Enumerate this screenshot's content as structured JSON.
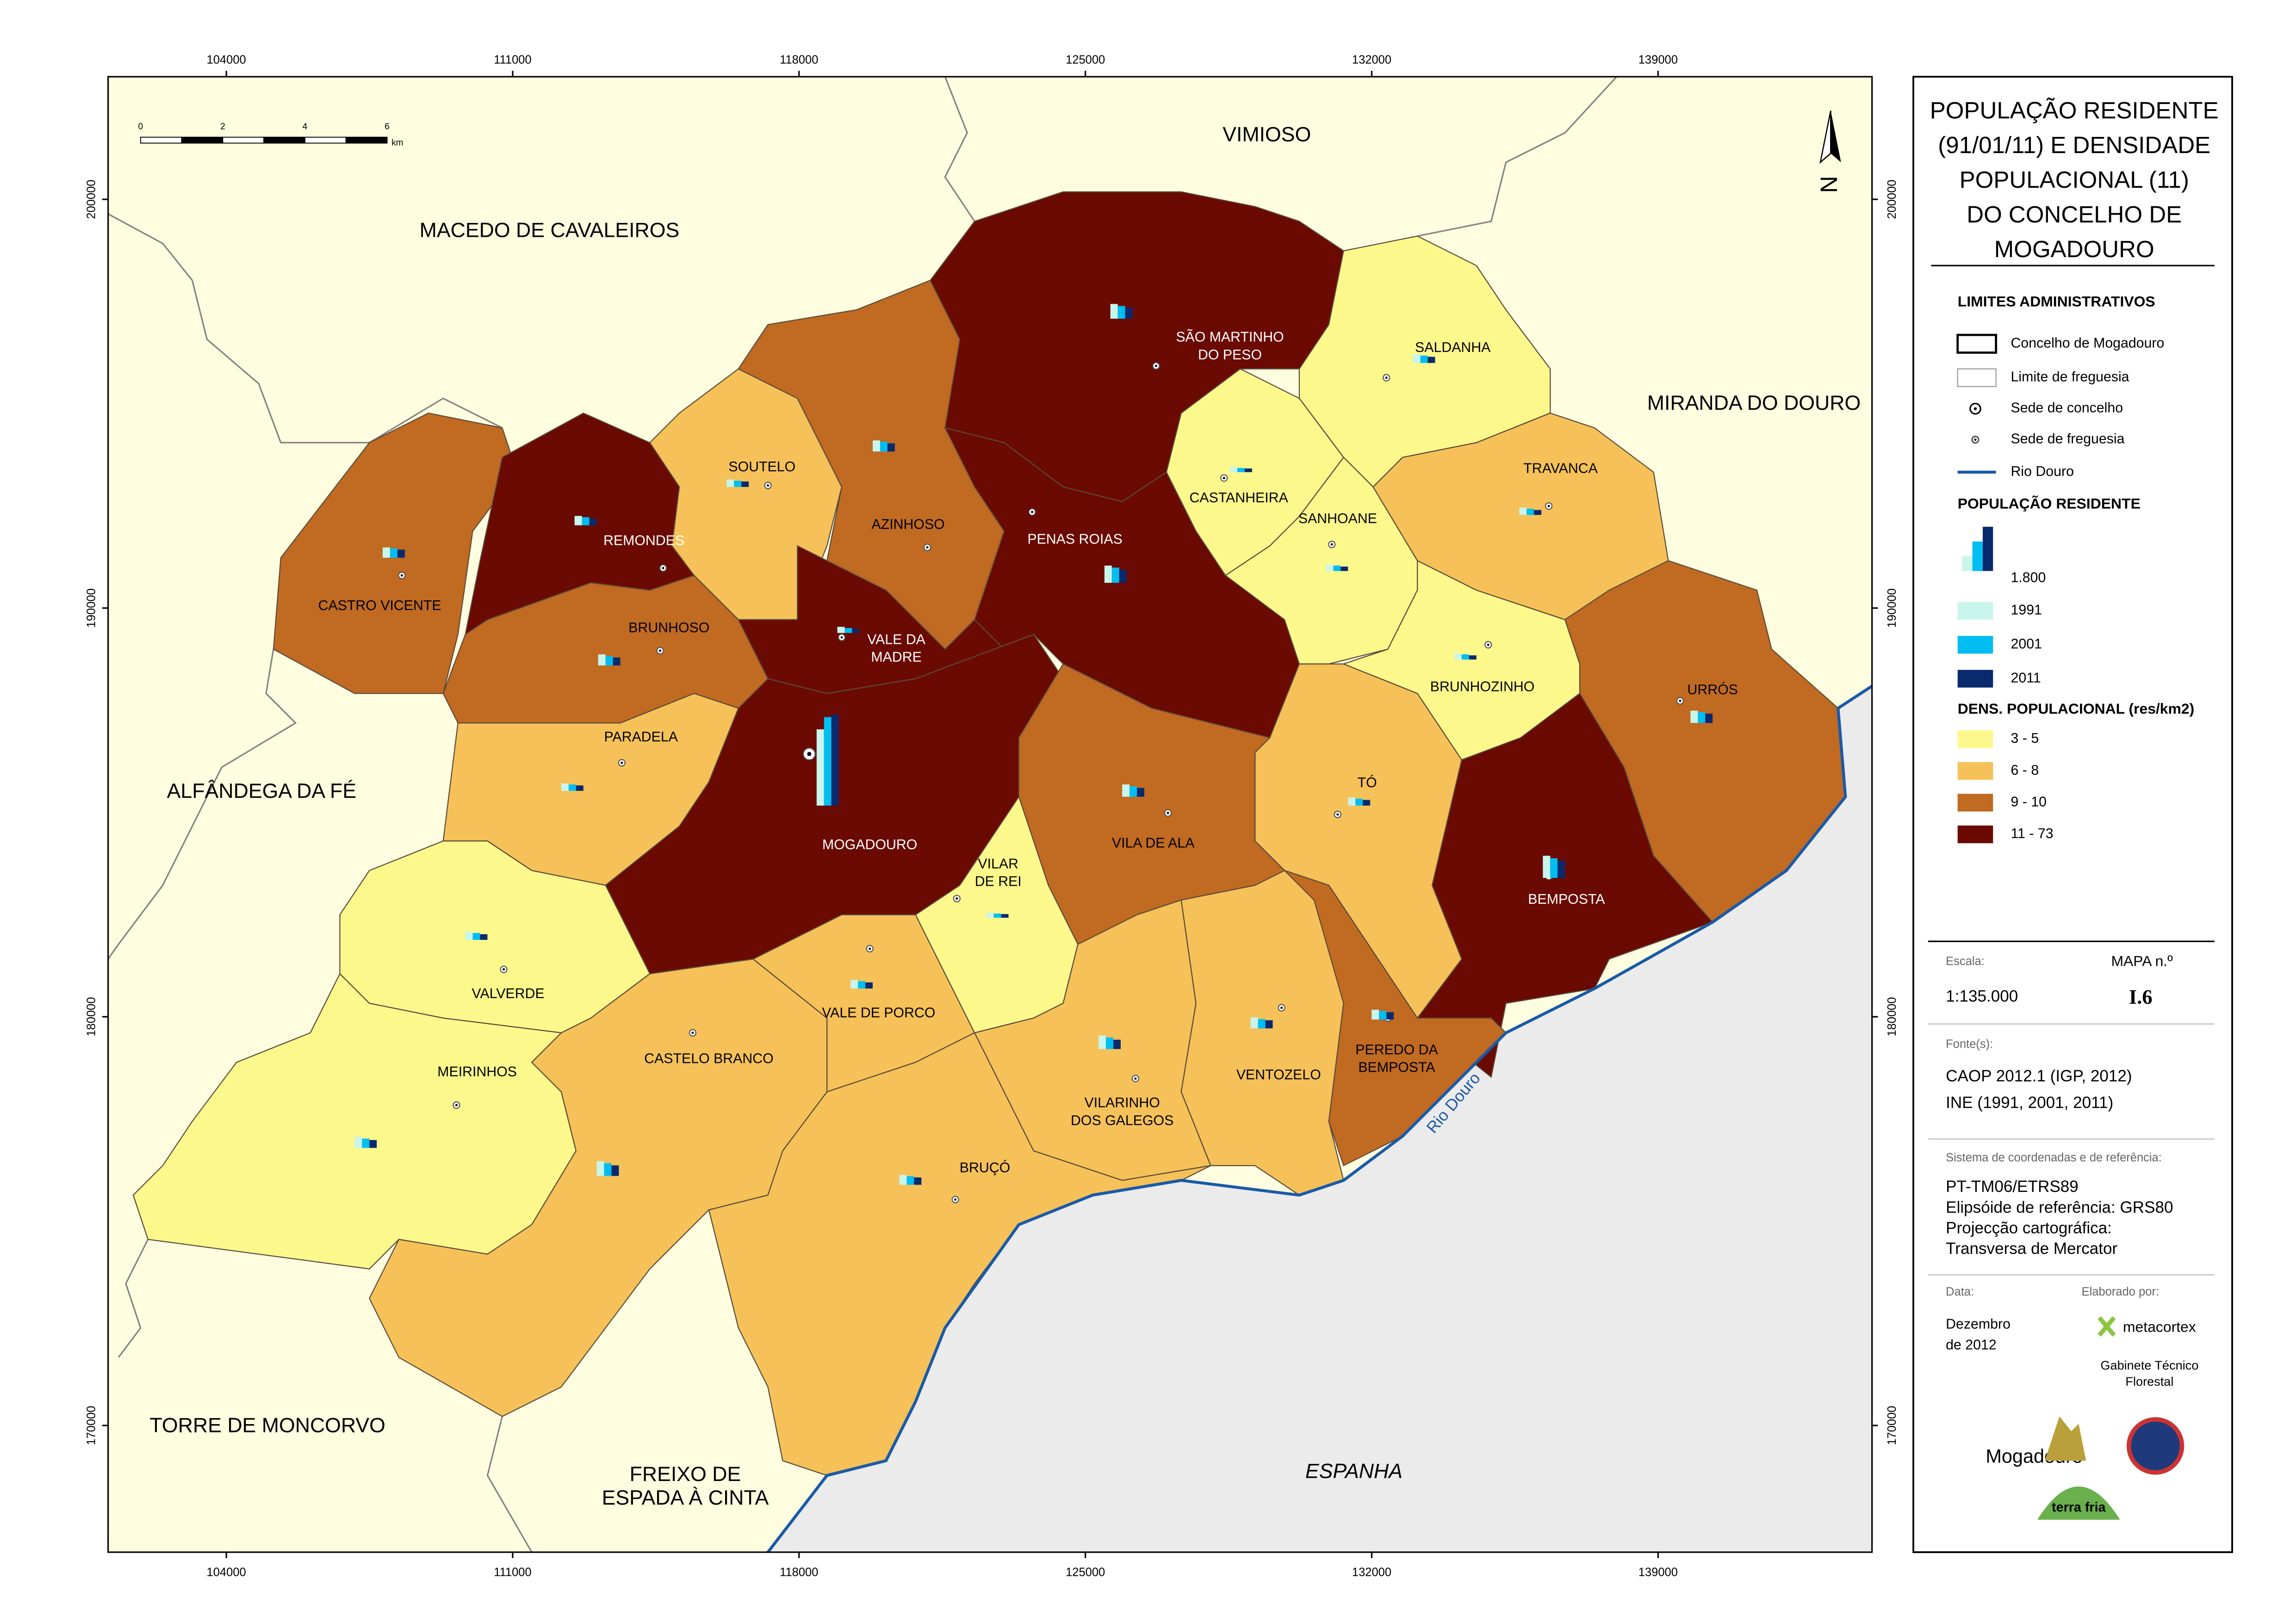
{
  "title_lines": [
    "POPULAÇÃO RESIDENTE",
    "(91/01/11) E DENSIDADE",
    "POPULACIONAL (11)",
    "DO CONCELHO DE",
    "MOGADOURO"
  ],
  "map": {
    "xlim": [
      101110,
      144230
    ],
    "ylim": [
      166900,
      203000
    ],
    "xticks": [
      104000,
      111000,
      118000,
      125000,
      132000,
      139000
    ],
    "yticks": [
      170000,
      180000,
      190000,
      200000
    ],
    "scale_bar": {
      "ticks": [
        0,
        2,
        4,
        6
      ],
      "unit": "km"
    },
    "north": "N",
    "neighbors": [
      [
        "VIMIOSO"
      ],
      [
        "MACEDO DE CAVALEIROS"
      ],
      [
        "MIRANDA DO DOURO"
      ],
      [
        "ALFÂNDEGA DA FÉ"
      ],
      [
        "TORRE DE MONCORVO"
      ],
      [
        "FREIXO DE",
        "ESPADA À CINTA"
      ]
    ],
    "spain": "ESPANHA",
    "river": "Rio Douro",
    "parishes": [
      {
        "name": [
          "CASTRO VICENTE"
        ],
        "color": "#c06a22",
        "population": [
          420,
          380,
          330
        ]
      },
      {
        "name": [
          "REMONDES"
        ],
        "color": "#6a0a02",
        "population": [
          380,
          330,
          280
        ]
      },
      {
        "name": [
          "SOUTELO"
        ],
        "color": "#f5c158",
        "population": [
          300,
          250,
          220
        ]
      },
      {
        "name": [
          "AZINHOSO"
        ],
        "color": "#c06a22",
        "population": [
          450,
          400,
          330
        ]
      },
      {
        "name": [
          "SÃO MARTINHO",
          "DO PESO"
        ],
        "color": "#6a0a02",
        "population": [
          600,
          520,
          450
        ]
      },
      {
        "name": [
          "PENAS ROIAS"
        ],
        "color": "#6a0a02",
        "population": [
          700,
          620,
          520
        ]
      },
      {
        "name": [
          "SALDANHA"
        ],
        "color": "#fdf88c",
        "population": [
          350,
          300,
          250
        ]
      },
      {
        "name": [
          "CASTANHEIRA"
        ],
        "color": "#fdf88c",
        "population": [
          200,
          170,
          150
        ]
      },
      {
        "name": [
          "SANHOANE"
        ],
        "color": "#fdf88c",
        "population": [
          250,
          220,
          180
        ]
      },
      {
        "name": [
          "TRAVANCA"
        ],
        "color": "#f5c158",
        "population": [
          300,
          250,
          200
        ]
      },
      {
        "name": [
          "BRUNHOZINHO"
        ],
        "color": "#fdf88c",
        "population": [
          250,
          210,
          170
        ]
      },
      {
        "name": [
          "URRÓS"
        ],
        "color": "#c06a22",
        "population": [
          500,
          440,
          380
        ]
      },
      {
        "name": [
          "BEMPOSTA"
        ],
        "color": "#6a0a02",
        "population": [
          900,
          800,
          700
        ]
      },
      {
        "name": [
          "TÓ"
        ],
        "color": "#f5c158",
        "population": [
          330,
          280,
          230
        ]
      },
      {
        "name": [
          "BRUNHOSO"
        ],
        "color": "#c06a22",
        "population": [
          450,
          380,
          320
        ]
      },
      {
        "name": [
          "VALE DA",
          "MADRE"
        ],
        "color": "#6a0a02",
        "population": [
          250,
          200,
          170
        ]
      },
      {
        "name": [
          "PARADELA"
        ],
        "color": "#f5c158",
        "population": [
          300,
          260,
          220
        ]
      },
      {
        "name": [
          "MOGADOURO"
        ],
        "color": "#6a0a02",
        "population": [
          3100,
          3600,
          3700
        ]
      },
      {
        "name": [
          "VILA DE ALA"
        ],
        "color": "#c06a22",
        "population": [
          500,
          430,
          360
        ]
      },
      {
        "name": [
          "VILAR",
          "DE REI"
        ],
        "color": "#fdf88c",
        "population": [
          200,
          170,
          150
        ]
      },
      {
        "name": [
          "VALVERDE"
        ],
        "color": "#fdf88c",
        "population": [
          330,
          280,
          230
        ]
      },
      {
        "name": [
          "MEIRINHOS"
        ],
        "color": "#fdf88c",
        "population": [
          450,
          380,
          320
        ]
      },
      {
        "name": [
          "CASTELO BRANCO"
        ],
        "color": "#f5c158",
        "population": [
          600,
          520,
          430
        ]
      },
      {
        "name": [
          "VALE DE PORCO"
        ],
        "color": "#f5c158",
        "population": [
          350,
          300,
          250
        ]
      },
      {
        "name": [
          "VILARINHO",
          "DOS GALEGOS"
        ],
        "color": "#f5c158",
        "population": [
          550,
          470,
          380
        ]
      },
      {
        "name": [
          "VENTOZELO"
        ],
        "color": "#f5c158",
        "population": [
          450,
          380,
          330
        ]
      },
      {
        "name": [
          "PEREDO DA",
          "BEMPOSTA"
        ],
        "color": "#c06a22",
        "population": [
          400,
          350,
          300
        ]
      },
      {
        "name": [
          "BRUÇÓ"
        ],
        "color": "#f5c158",
        "population": [
          400,
          350,
          300
        ]
      }
    ]
  },
  "legend": {
    "admin_title": "LIMITES ADMINISTRATIVOS",
    "admin_items": [
      "Concelho de Mogadouro",
      "Limite de freguesia",
      "Sede de concelho",
      "Sede de freguesia",
      "Rio Douro"
    ],
    "pop_title": "POPULAÇÃO RESIDENTE",
    "pop_reference": {
      "value": 1800,
      "label": "1.800"
    },
    "years": [
      {
        "label": "1991",
        "color": "#c8f5ec"
      },
      {
        "label": "2001",
        "color": "#00bdf2"
      },
      {
        "label": "2011",
        "color": "#0a2a6e"
      }
    ],
    "density_title": "DENS. POPULACIONAL (res/km2)",
    "density_classes": [
      {
        "label": "3 - 5",
        "color": "#fdf88c"
      },
      {
        "label": "6 - 8",
        "color": "#f5c158"
      },
      {
        "label": "9 - 10",
        "color": "#c06a22"
      },
      {
        "label": "11 - 73",
        "color": "#6a0a02"
      }
    ]
  },
  "info": {
    "scale_label": "Escala:",
    "scale": "1:135.000",
    "map_label": "MAPA n.º",
    "map_number": "I.6",
    "sources_label": "Fonte(s):",
    "sources": [
      "CAOP 2012.1 (IGP, 2012)",
      "INE (1991, 2001, 2011)"
    ],
    "crs_label": "Sistema de coordenadas e de referência:",
    "crs": [
      "PT-TM06/ETRS89",
      "Elipsóide de referência: GRS80",
      "Projecção cartográfica:",
      "Transversa de Mercator"
    ],
    "date_label": "Data:",
    "date": [
      "Dezembro",
      "de 2012"
    ],
    "author_label": "Elaborado por:",
    "author": "metacortex",
    "author_unit": [
      "Gabinete Técnico",
      "Florestal"
    ],
    "logos": [
      "Mogadouro",
      "terra fria"
    ]
  }
}
